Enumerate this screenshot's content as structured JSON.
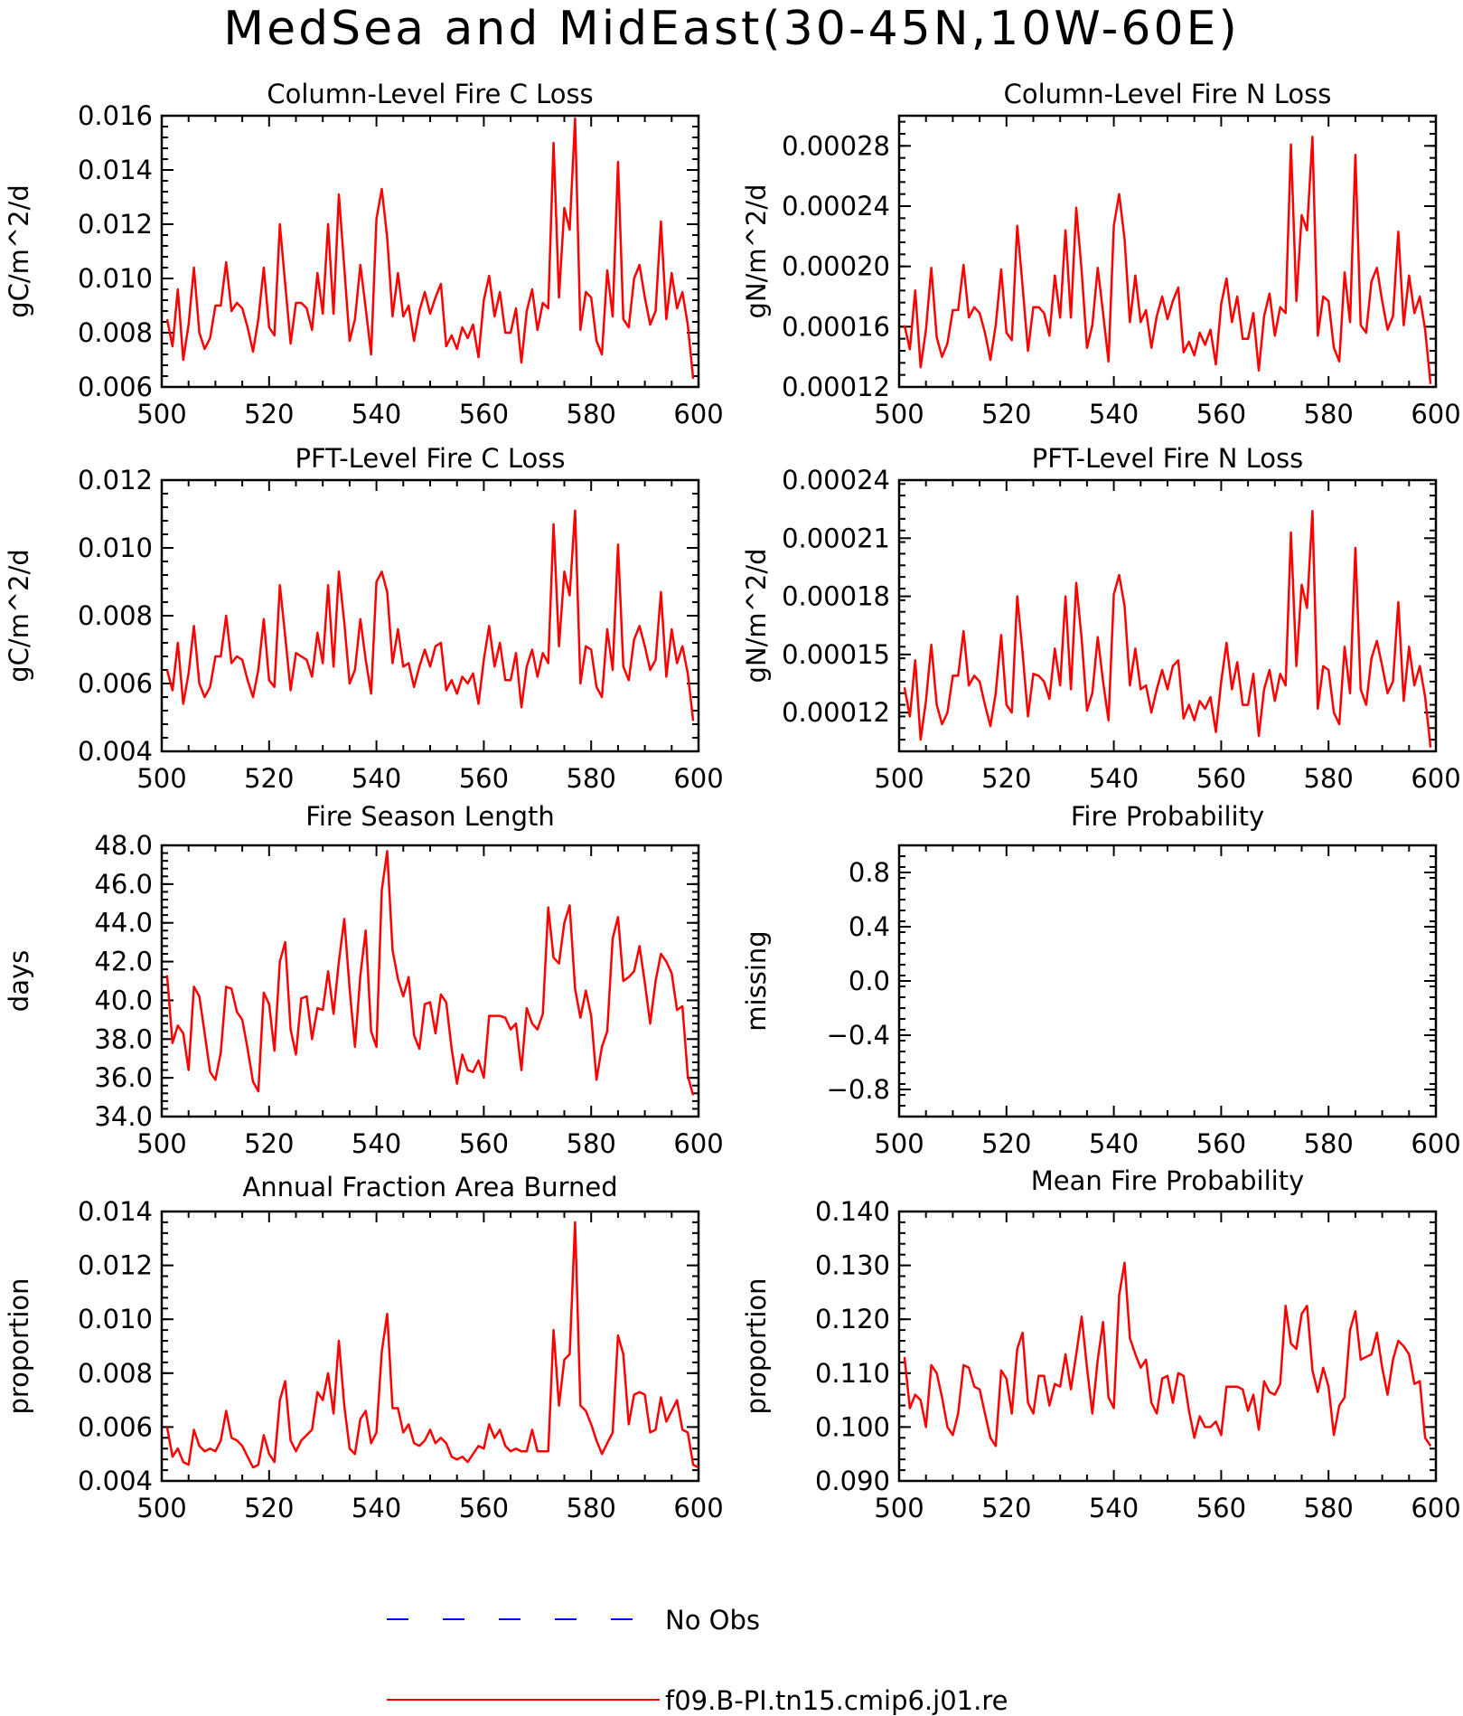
{
  "figure": {
    "title": "MedSea and MidEast(30-45N,10W-60E)"
  },
  "legend": [
    {
      "label": "No Obs",
      "color": "#0000ff",
      "dash": true
    },
    {
      "label": "f09.B-PI.tn15.cmip6.j01.re",
      "color": "#ff0000",
      "dash": false
    }
  ],
  "chart_data": [
    {
      "type": "line",
      "title": "Column-Level Fire C Loss",
      "ylabel": "gC/m^2/d",
      "xlim": [
        500,
        600
      ],
      "ylim": [
        0.006,
        0.016
      ],
      "xticks": [
        "500",
        "520",
        "540",
        "560",
        "580",
        "600"
      ],
      "yticks": [
        "0.006",
        "0.008",
        "0.010",
        "0.012",
        "0.014",
        "0.016"
      ],
      "x_start": 501,
      "x_step": 1,
      "series": [
        {
          "color": "#ff0000",
          "values": [
            0.0085,
            0.0075,
            0.0096,
            0.007,
            0.0083,
            0.0104,
            0.008,
            0.0074,
            0.0078,
            0.009,
            0.009,
            0.0106,
            0.0088,
            0.0091,
            0.0089,
            0.0082,
            0.0073,
            0.0085,
            0.0104,
            0.0082,
            0.0079,
            0.012,
            0.0098,
            0.0076,
            0.0091,
            0.0091,
            0.0089,
            0.0081,
            0.0102,
            0.0087,
            0.012,
            0.0087,
            0.0131,
            0.0104,
            0.0077,
            0.0085,
            0.0105,
            0.0089,
            0.0072,
            0.0122,
            0.0133,
            0.0115,
            0.0086,
            0.0102,
            0.0086,
            0.009,
            0.0077,
            0.0088,
            0.0095,
            0.0087,
            0.0093,
            0.0098,
            0.0075,
            0.0079,
            0.0074,
            0.0082,
            0.0078,
            0.0083,
            0.0071,
            0.0092,
            0.0101,
            0.0086,
            0.0095,
            0.008,
            0.008,
            0.0089,
            0.0069,
            0.0088,
            0.0096,
            0.0081,
            0.0091,
            0.0089,
            0.015,
            0.0093,
            0.0126,
            0.0118,
            0.0159,
            0.0081,
            0.0095,
            0.0093,
            0.0077,
            0.0072,
            0.0103,
            0.0086,
            0.0143,
            0.0085,
            0.0082,
            0.01,
            0.0105,
            0.0093,
            0.0083,
            0.0088,
            0.0121,
            0.0085,
            0.0102,
            0.0089,
            0.0095,
            0.0083,
            0.0063
          ]
        }
      ]
    },
    {
      "type": "line",
      "title": "Column-Level Fire N Loss",
      "ylabel": "gN/m^2/d",
      "xlim": [
        500,
        600
      ],
      "ylim": [
        0.00012,
        0.0003
      ],
      "xticks": [
        "500",
        "520",
        "540",
        "560",
        "580",
        "600"
      ],
      "yticks": [
        "0.00012",
        "0.00016",
        "0.00020",
        "0.00024",
        "0.00028"
      ],
      "x_start": 501,
      "x_step": 1,
      "series": [
        {
          "color": "#ff0000",
          "values": [
            0.000161,
            0.000145,
            0.000184,
            0.000133,
            0.000158,
            0.000199,
            0.000153,
            0.00014,
            0.000149,
            0.000171,
            0.000171,
            0.000201,
            0.000166,
            0.000173,
            0.000169,
            0.000156,
            0.000138,
            0.000161,
            0.000198,
            0.000156,
            0.000151,
            0.000227,
            0.000187,
            0.000144,
            0.000173,
            0.000173,
            0.000169,
            0.000154,
            0.000194,
            0.000166,
            0.000224,
            0.000166,
            0.000239,
            0.000197,
            0.000146,
            0.000161,
            0.000199,
            0.000169,
            0.000137,
            0.000227,
            0.000248,
            0.000218,
            0.000163,
            0.000194,
            0.000163,
            0.000171,
            0.000146,
            0.000167,
            0.00018,
            0.000165,
            0.000177,
            0.000186,
            0.000143,
            0.00015,
            0.000141,
            0.000156,
            0.000148,
            0.000158,
            0.000135,
            0.000175,
            0.000192,
            0.000163,
            0.00018,
            0.000152,
            0.000152,
            0.000169,
            0.000131,
            0.000167,
            0.000182,
            0.000154,
            0.000173,
            0.000169,
            0.000281,
            0.000177,
            0.000234,
            0.000224,
            0.000286,
            0.000154,
            0.00018,
            0.000177,
            0.000146,
            0.000137,
            0.000196,
            0.000163,
            0.000274,
            0.000161,
            0.000156,
            0.00019,
            0.000199,
            0.000177,
            0.000158,
            0.000167,
            0.000223,
            0.000161,
            0.000194,
            0.000169,
            0.00018,
            0.000158,
            0.000122
          ]
        }
      ]
    },
    {
      "type": "line",
      "title": "PFT-Level Fire C Loss",
      "ylabel": "gC/m^2/d",
      "xlim": [
        500,
        600
      ],
      "ylim": [
        0.004,
        0.012
      ],
      "xticks": [
        "500",
        "520",
        "540",
        "560",
        "580",
        "600"
      ],
      "yticks": [
        "0.004",
        "0.006",
        "0.008",
        "0.010",
        "0.012"
      ],
      "x_start": 501,
      "x_step": 1,
      "series": [
        {
          "color": "#ff0000",
          "values": [
            0.0064,
            0.0058,
            0.0072,
            0.0054,
            0.0063,
            0.0077,
            0.006,
            0.0056,
            0.0059,
            0.0068,
            0.0068,
            0.008,
            0.0066,
            0.0068,
            0.0067,
            0.0061,
            0.0056,
            0.0064,
            0.0079,
            0.0061,
            0.0059,
            0.0089,
            0.0074,
            0.0058,
            0.0069,
            0.0068,
            0.0067,
            0.0062,
            0.0075,
            0.0066,
            0.0089,
            0.0065,
            0.0093,
            0.0078,
            0.006,
            0.0064,
            0.0079,
            0.0067,
            0.0057,
            0.009,
            0.0093,
            0.0087,
            0.0066,
            0.0076,
            0.0065,
            0.0066,
            0.0059,
            0.0065,
            0.007,
            0.0065,
            0.0071,
            0.0072,
            0.0058,
            0.0061,
            0.0057,
            0.0062,
            0.006,
            0.0063,
            0.0054,
            0.0067,
            0.0077,
            0.0065,
            0.0072,
            0.0061,
            0.0061,
            0.0069,
            0.0053,
            0.0065,
            0.007,
            0.0062,
            0.0069,
            0.0066,
            0.0107,
            0.0071,
            0.0093,
            0.0086,
            0.0111,
            0.006,
            0.0071,
            0.007,
            0.0059,
            0.0056,
            0.0076,
            0.0064,
            0.0101,
            0.0065,
            0.0061,
            0.0073,
            0.0077,
            0.0071,
            0.0064,
            0.0067,
            0.0087,
            0.0062,
            0.0076,
            0.0066,
            0.0071,
            0.0063,
            0.0049
          ]
        }
      ]
    },
    {
      "type": "line",
      "title": "PFT-Level Fire N Loss",
      "ylabel": "gN/m^2/d",
      "xlim": [
        500,
        600
      ],
      "ylim": [
        0.0001,
        0.00024
      ],
      "xticks": [
        "500",
        "520",
        "540",
        "560",
        "580",
        "600"
      ],
      "yticks": [
        "0.00012",
        "0.00015",
        "0.00018",
        "0.00021",
        "0.00024"
      ],
      "x_start": 501,
      "x_step": 1,
      "series": [
        {
          "color": "#ff0000",
          "values": [
            0.000133,
            0.000118,
            0.000147,
            0.000106,
            0.000126,
            0.000155,
            0.000124,
            0.000114,
            0.00012,
            0.000139,
            0.000139,
            0.000162,
            0.000134,
            0.000139,
            0.000136,
            0.000124,
            0.000113,
            0.00013,
            0.00016,
            0.000124,
            0.00012,
            0.00018,
            0.000151,
            0.000118,
            0.00014,
            0.000139,
            0.000136,
            0.000127,
            0.000153,
            0.000134,
            0.00018,
            0.000132,
            0.000187,
            0.000158,
            0.000121,
            0.00013,
            0.000159,
            0.000136,
            0.000116,
            0.000181,
            0.000191,
            0.000175,
            0.000134,
            0.000153,
            0.000132,
            0.000134,
            0.00012,
            0.000132,
            0.000142,
            0.000132,
            0.000144,
            0.000147,
            0.000117,
            0.000124,
            0.000116,
            0.000126,
            0.000122,
            0.000128,
            0.00011,
            0.000136,
            0.000156,
            0.000132,
            0.000146,
            0.000124,
            0.000124,
            0.00014,
            0.000108,
            0.000132,
            0.000142,
            0.000126,
            0.00014,
            0.000134,
            0.000213,
            0.000144,
            0.000186,
            0.000174,
            0.000224,
            0.000122,
            0.000144,
            0.000142,
            0.00012,
            0.000114,
            0.000154,
            0.00013,
            0.000205,
            0.000132,
            0.000124,
            0.000148,
            0.000157,
            0.000144,
            0.00013,
            0.000136,
            0.000177,
            0.000126,
            0.000154,
            0.000134,
            0.000144,
            0.000128,
            0.000102
          ]
        }
      ]
    },
    {
      "type": "line",
      "title": "Fire Season Length",
      "ylabel": "days",
      "xlim": [
        500,
        600
      ],
      "ylim": [
        34,
        48
      ],
      "xticks": [
        "500",
        "520",
        "540",
        "560",
        "580",
        "600"
      ],
      "yticks": [
        "34.0",
        "36.0",
        "38.0",
        "40.0",
        "42.0",
        "44.0",
        "46.0",
        "48.0"
      ],
      "x_start": 501,
      "x_step": 1,
      "series": [
        {
          "color": "#ff0000",
          "values": [
            41.3,
            37.8,
            38.7,
            38.3,
            36.4,
            40.7,
            40.2,
            38.3,
            36.3,
            35.9,
            37.3,
            40.7,
            40.6,
            39.4,
            39.0,
            37.5,
            35.8,
            35.3,
            40.4,
            39.8,
            37.4,
            42.0,
            43.0,
            38.5,
            37.2,
            40.1,
            40.2,
            38.0,
            39.6,
            39.5,
            41.5,
            39.3,
            42.0,
            44.2,
            40.6,
            37.6,
            41.3,
            43.6,
            38.4,
            37.6,
            45.7,
            47.7,
            42.6,
            41.1,
            40.2,
            41.2,
            38.2,
            37.5,
            39.8,
            39.9,
            38.3,
            40.3,
            39.9,
            37.5,
            35.7,
            37.2,
            36.4,
            36.3,
            36.9,
            36.0,
            39.2,
            39.2,
            39.2,
            39.1,
            38.5,
            38.8,
            36.4,
            39.6,
            38.8,
            38.5,
            39.3,
            44.8,
            42.2,
            41.9,
            44.0,
            44.9,
            40.6,
            39.1,
            40.5,
            39.2,
            35.9,
            37.6,
            38.4,
            43.2,
            44.3,
            41.0,
            41.2,
            41.5,
            42.8,
            40.9,
            38.8,
            41.0,
            42.4,
            42.0,
            41.4,
            39.5,
            39.7,
            36.1,
            35.1
          ]
        }
      ]
    },
    {
      "type": "line",
      "title": "Fire Probability",
      "ylabel": "missing",
      "xlim": [
        500,
        600
      ],
      "ylim": [
        -1.0,
        1.0
      ],
      "xticks": [
        "500",
        "520",
        "540",
        "560",
        "580",
        "600"
      ],
      "yticks": [
        "−0.8",
        "−0.4",
        "0.0",
        "0.4",
        "0.8"
      ],
      "ytick_values": [
        -0.8,
        -0.4,
        0.0,
        0.4,
        0.8
      ],
      "x_start": 501,
      "x_step": 1,
      "series": []
    },
    {
      "type": "line",
      "title": "Annual Fraction Area Burned",
      "ylabel": "proportion",
      "xlim": [
        500,
        600
      ],
      "ylim": [
        0.004,
        0.014
      ],
      "xticks": [
        "500",
        "520",
        "540",
        "560",
        "580",
        "600"
      ],
      "yticks": [
        "0.004",
        "0.006",
        "0.008",
        "0.010",
        "0.012",
        "0.014"
      ],
      "x_start": 501,
      "x_step": 1,
      "series": [
        {
          "color": "#ff0000",
          "values": [
            0.006,
            0.0049,
            0.0052,
            0.0047,
            0.0046,
            0.0059,
            0.0053,
            0.0051,
            0.0052,
            0.0051,
            0.0055,
            0.0066,
            0.0056,
            0.0055,
            0.0053,
            0.0049,
            0.0045,
            0.0046,
            0.0057,
            0.005,
            0.0047,
            0.007,
            0.0077,
            0.0055,
            0.0051,
            0.0055,
            0.0057,
            0.0059,
            0.0073,
            0.007,
            0.008,
            0.0065,
            0.0092,
            0.0068,
            0.0052,
            0.005,
            0.0063,
            0.0066,
            0.0054,
            0.0058,
            0.0088,
            0.0102,
            0.0067,
            0.0067,
            0.0058,
            0.0061,
            0.0054,
            0.0053,
            0.0055,
            0.0059,
            0.0054,
            0.0056,
            0.0054,
            0.0049,
            0.0048,
            0.0049,
            0.0047,
            0.005,
            0.0053,
            0.0052,
            0.0061,
            0.0056,
            0.0059,
            0.0053,
            0.0051,
            0.0052,
            0.0051,
            0.0051,
            0.0059,
            0.0051,
            0.0051,
            0.0051,
            0.0096,
            0.0068,
            0.0085,
            0.0087,
            0.0136,
            0.0068,
            0.0066,
            0.0061,
            0.0055,
            0.005,
            0.0054,
            0.0058,
            0.0094,
            0.0087,
            0.0061,
            0.0072,
            0.0073,
            0.0072,
            0.0058,
            0.0059,
            0.0071,
            0.0062,
            0.0066,
            0.007,
            0.0059,
            0.0058,
            0.0046,
            0.0045
          ]
        }
      ]
    },
    {
      "type": "line",
      "title": "Mean Fire Probability",
      "ylabel": "proportion",
      "xlim": [
        500,
        600
      ],
      "ylim": [
        0.09,
        0.14
      ],
      "xticks": [
        "500",
        "520",
        "540",
        "560",
        "580",
        "600"
      ],
      "yticks": [
        "0.090",
        "0.100",
        "0.110",
        "0.120",
        "0.130",
        "0.140"
      ],
      "x_start": 501,
      "x_step": 1,
      "series": [
        {
          "color": "#ff0000",
          "values": [
            0.113,
            0.1035,
            0.106,
            0.105,
            0.1,
            0.1115,
            0.11,
            0.1055,
            0.1,
            0.0985,
            0.1025,
            0.1115,
            0.111,
            0.1075,
            0.107,
            0.1025,
            0.098,
            0.0965,
            0.1105,
            0.109,
            0.1025,
            0.1145,
            0.1175,
            0.1045,
            0.1025,
            0.1095,
            0.1095,
            0.104,
            0.108,
            0.1075,
            0.1135,
            0.107,
            0.1135,
            0.1205,
            0.111,
            0.1025,
            0.1125,
            0.1195,
            0.1055,
            0.1035,
            0.1245,
            0.1305,
            0.1165,
            0.1135,
            0.111,
            0.1125,
            0.1045,
            0.1025,
            0.109,
            0.1095,
            0.1045,
            0.11,
            0.1095,
            0.103,
            0.098,
            0.102,
            0.1,
            0.1,
            0.101,
            0.0985,
            0.1075,
            0.1075,
            0.1075,
            0.107,
            0.103,
            0.106,
            0.0995,
            0.1085,
            0.1065,
            0.106,
            0.108,
            0.1225,
            0.1155,
            0.1145,
            0.121,
            0.1225,
            0.1105,
            0.1065,
            0.111,
            0.1075,
            0.0985,
            0.104,
            0.1055,
            0.118,
            0.1215,
            0.1125,
            0.113,
            0.1135,
            0.1175,
            0.111,
            0.106,
            0.1125,
            0.116,
            0.115,
            0.1135,
            0.108,
            0.1085,
            0.098,
            0.0965
          ]
        }
      ]
    }
  ]
}
